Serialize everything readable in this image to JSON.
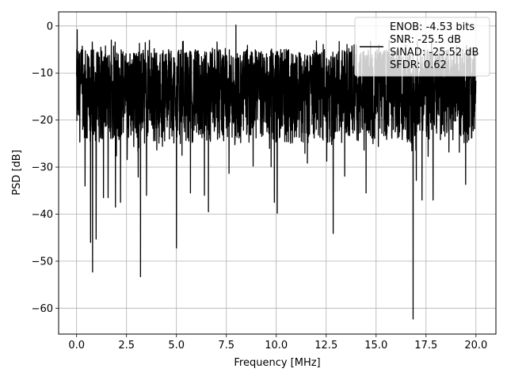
{
  "chart_data": {
    "type": "line",
    "title": "",
    "xlabel": "Frequency [MHz]",
    "ylabel": "PSD [dB]",
    "xlim": [
      -0.9,
      21.0
    ],
    "ylim": [
      -65.5,
      3.0
    ],
    "xticks": [
      0.0,
      2.5,
      5.0,
      7.5,
      10.0,
      12.5,
      15.0,
      17.5,
      20.0
    ],
    "xtick_labels": [
      "0.0",
      "2.5",
      "5.0",
      "7.5",
      "10.0",
      "12.5",
      "15.0",
      "17.5",
      "20.0"
    ],
    "yticks": [
      0,
      -10,
      -20,
      -30,
      -40,
      -50,
      -60
    ],
    "ytick_labels": [
      "0",
      "−10",
      "−20",
      "−30",
      "−40",
      "−50",
      "−60"
    ],
    "grid": true,
    "legend_position": "top-right",
    "line_color": "#000000",
    "series": [
      {
        "name": "ENOB: -4.53 bits\nSNR: -25.5 dB\nSINAD: -25.52 dB\nSFDR: 0.62",
        "legend_lines": [
          "ENOB: -4.53 bits",
          "SNR: -25.5 dB",
          "SINAD: -25.52 dB",
          "SFDR: 0.62"
        ],
        "x_start": 0.0,
        "x_end": 20.0,
        "noise_band": [
          -25,
          -5
        ],
        "peaks": [
          {
            "x": 0.03,
            "y": -0.8
          },
          {
            "x": 7.98,
            "y": 0.2
          },
          {
            "x": 1.05,
            "y": -6.0
          },
          {
            "x": 2.3,
            "y": -6.0
          },
          {
            "x": 13.9,
            "y": -4.0
          }
        ],
        "dips": [
          {
            "x": 0.42,
            "y": -34.0
          },
          {
            "x": 0.7,
            "y": -46.0
          },
          {
            "x": 0.8,
            "y": -52.3
          },
          {
            "x": 0.98,
            "y": -45.3
          },
          {
            "x": 1.35,
            "y": -36.5
          },
          {
            "x": 1.58,
            "y": -36.5
          },
          {
            "x": 1.95,
            "y": -38.5
          },
          {
            "x": 2.2,
            "y": -37.5
          },
          {
            "x": 3.2,
            "y": -53.3
          },
          {
            "x": 3.5,
            "y": -36.0
          },
          {
            "x": 5.0,
            "y": -47.2
          },
          {
            "x": 5.7,
            "y": -35.5
          },
          {
            "x": 6.4,
            "y": -36.0
          },
          {
            "x": 6.6,
            "y": -39.5
          },
          {
            "x": 9.9,
            "y": -37.5
          },
          {
            "x": 10.05,
            "y": -39.8
          },
          {
            "x": 12.85,
            "y": -44.1
          },
          {
            "x": 14.5,
            "y": -35.5
          },
          {
            "x": 16.85,
            "y": -62.3
          },
          {
            "x": 17.3,
            "y": -37.0
          },
          {
            "x": 17.85,
            "y": -37.0
          }
        ]
      }
    ]
  }
}
